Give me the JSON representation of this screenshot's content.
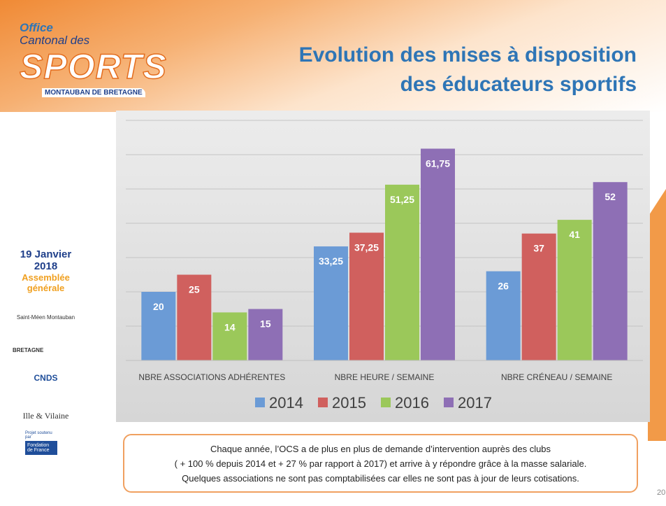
{
  "header": {
    "logo": [
      "Office",
      "Cantonal des",
      "SPORTS",
      "MONTAUBAN DE BRETAGNE"
    ],
    "title": [
      "Evolution des mises à disposition",
      "des éducateurs sportifs"
    ]
  },
  "sidebar": {
    "date": [
      "19 Janvier",
      "2018"
    ],
    "event": [
      "Assemblée",
      "générale"
    ],
    "logos": [
      "Saint-Méen Montauban",
      "BRETAGNE",
      "CNDS",
      "Ille & Vilaine",
      "Projet soutenu par",
      "Fondation de France"
    ]
  },
  "chart_data": {
    "type": "bar",
    "categories": [
      "NBRE ASSOCIATIONS ADHÉRENTES",
      "NBRE HEURE / SEMAINE",
      "NBRE CRÉNEAU / SEMAINE"
    ],
    "series": [
      {
        "name": "2014",
        "color": "#6b9bd6",
        "values": [
          20,
          33.25,
          26
        ],
        "value_labels": [
          "20",
          "33,25",
          "26"
        ]
      },
      {
        "name": "2015",
        "color": "#d0605e",
        "values": [
          25,
          37.25,
          37
        ],
        "value_labels": [
          "25",
          "37,25",
          "37"
        ]
      },
      {
        "name": "2016",
        "color": "#9bc85a",
        "values": [
          14,
          51.25,
          41
        ],
        "value_labels": [
          "14",
          "51,25",
          "41"
        ]
      },
      {
        "name": "2017",
        "color": "#8e6fb5",
        "values": [
          15,
          61.75,
          52
        ],
        "value_labels": [
          "15",
          "61,75",
          "52"
        ]
      }
    ],
    "ylim": [
      0,
      70
    ],
    "yticks": [
      0,
      10,
      20,
      30,
      40,
      50,
      60,
      70
    ],
    "grid": true
  },
  "note": [
    "Chaque année, l’OCS a de plus en plus de demande d’intervention auprès des clubs",
    "( + 100 % depuis 2014 et + 27 % par rapport à 2017) et arrive à y répondre grâce à la masse salariale.",
    "Quelques associations ne sont pas comptabilisées car elles ne sont pas à jour de leurs cotisations."
  ],
  "page_number": "20"
}
